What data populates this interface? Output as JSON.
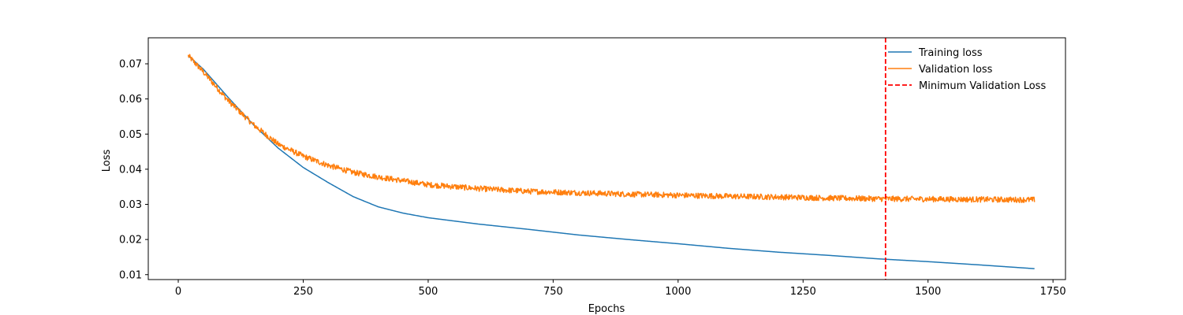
{
  "chart_data": {
    "type": "line",
    "title": "",
    "xlabel": "Epochs",
    "ylabel": "Loss",
    "xlim": [
      -60,
      1775
    ],
    "ylim": [
      0.0086,
      0.0774
    ],
    "x_ticks": [
      0,
      250,
      500,
      750,
      1000,
      1250,
      1500,
      1750
    ],
    "y_ticks": [
      0.01,
      0.02,
      0.03,
      0.04,
      0.05,
      0.06,
      0.07
    ],
    "x_tick_labels": [
      "0",
      "250",
      "500",
      "750",
      "1000",
      "1250",
      "1500",
      "1750"
    ],
    "y_tick_labels": [
      "0.01",
      "0.02",
      "0.03",
      "0.04",
      "0.05",
      "0.06",
      "0.07"
    ],
    "grid": false,
    "legend_position": "top-right",
    "series": [
      {
        "name": "Training loss",
        "color": "#1f77b4",
        "x": [
          20,
          50,
          100,
          150,
          200,
          250,
          300,
          350,
          400,
          450,
          500,
          600,
          700,
          800,
          900,
          1000,
          1100,
          1200,
          1300,
          1400,
          1500,
          1600,
          1713
        ],
        "y": [
          0.0723,
          0.0685,
          0.0604,
          0.0527,
          0.046,
          0.0405,
          0.0362,
          0.0322,
          0.0293,
          0.0275,
          0.0262,
          0.0244,
          0.0229,
          0.0213,
          0.02,
          0.0188,
          0.0175,
          0.0164,
          0.0155,
          0.0145,
          0.0137,
          0.0128,
          0.0117
        ]
      },
      {
        "name": "Validation loss",
        "color": "#ff7f0e",
        "x": [
          20,
          50,
          100,
          150,
          200,
          250,
          300,
          350,
          400,
          450,
          500,
          600,
          700,
          800,
          900,
          1000,
          1100,
          1200,
          1300,
          1400,
          1500,
          1600,
          1713
        ],
        "y": [
          0.0723,
          0.0677,
          0.0595,
          0.0527,
          0.0471,
          0.0437,
          0.0411,
          0.0391,
          0.0378,
          0.0367,
          0.0356,
          0.0345,
          0.0337,
          0.0333,
          0.0329,
          0.0326,
          0.0323,
          0.0321,
          0.0318,
          0.0316,
          0.0315,
          0.0314,
          0.0313
        ],
        "noise_amplitude": 0.0008
      }
    ],
    "vertical_lines": [
      {
        "name": "Minimum Validation Loss",
        "x": 1415,
        "color": "#ff0000",
        "style": "dashed"
      }
    ],
    "legend": [
      {
        "label": "Training loss",
        "color": "#1f77b4",
        "style": "solid"
      },
      {
        "label": "Validation loss",
        "color": "#ff7f0e",
        "style": "solid"
      },
      {
        "label": "Minimum Validation Loss",
        "color": "#ff0000",
        "style": "dashed"
      }
    ]
  }
}
